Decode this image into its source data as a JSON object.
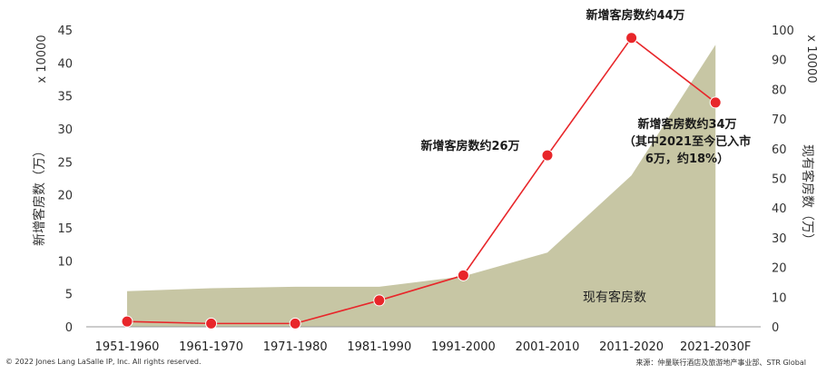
{
  "chart_data": {
    "type": "line",
    "categories": [
      "1951-1960",
      "1961-1970",
      "1971-1980",
      "1981-1990",
      "1991-2000",
      "2001-2010",
      "2011-2020",
      "2021-2030F"
    ],
    "series": [
      {
        "name": "",
        "type": "line",
        "axis": "left",
        "color": "#e8262a",
        "values": [
          0.8,
          0.5,
          0.5,
          4.0,
          7.8,
          26.0,
          43.8,
          34.0
        ]
      },
      {
        "name": "现有客房数",
        "type": "area",
        "axis": "right",
        "color": "#c7c6a4",
        "values": [
          12,
          13,
          13.5,
          13.5,
          17,
          25,
          51,
          95
        ]
      }
    ],
    "left_axis": {
      "label": "新增客房数（万）",
      "unit": "x 10000",
      "range": [
        0,
        45
      ],
      "ticks": [
        "0",
        "5",
        "10",
        "15",
        "20",
        "25",
        "30",
        "35",
        "40",
        "45"
      ]
    },
    "right_axis": {
      "label": "现有客房数（万）",
      "unit": "x 10000",
      "range": [
        0,
        100
      ],
      "ticks": [
        "0",
        "10",
        "20",
        "30",
        "40",
        "50",
        "60",
        "70",
        "80",
        "90",
        "100"
      ]
    },
    "annotations": {
      "a2011": "新增客房数约44万",
      "a2001": "新增客房数约26万",
      "a2021_line1": "新增客房数约34万",
      "a2021_line2": "（其中2021至今已入市",
      "a2021_line3": "6万，约18%）",
      "area": "现有客房数"
    },
    "grid": false,
    "legend": "none"
  },
  "footer": {
    "copyright": "© 2022 Jones Lang LaSalle IP, Inc. All rights reserved.",
    "source": "来源：仲量联行酒店及旅游地产事业部、STR Global"
  }
}
